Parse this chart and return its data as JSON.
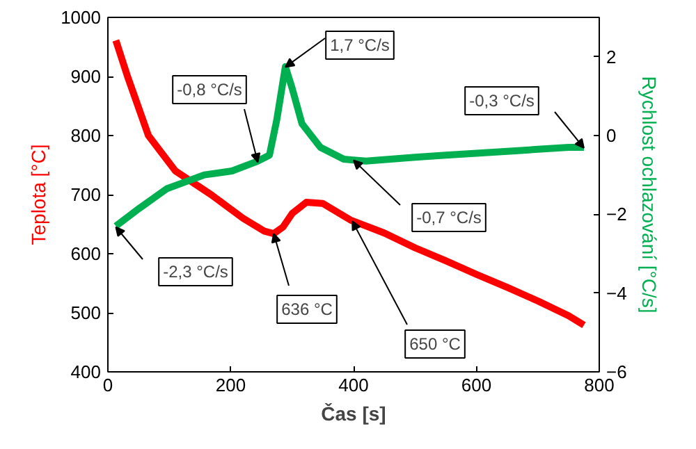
{
  "chart_data": {
    "type": "line",
    "xlabel": "Čas [s]",
    "ylabel": "Teplota [°C]",
    "y2label": "Rychlost ochlazování [°C/s]",
    "xlim": [
      0,
      800
    ],
    "xticks": [
      0,
      200,
      400,
      600,
      800
    ],
    "ylim": [
      400,
      1000
    ],
    "yticks": [
      400,
      500,
      600,
      700,
      800,
      900,
      1000
    ],
    "y2lim": [
      -6,
      3
    ],
    "y2ticks": [
      -6,
      -4,
      -2,
      0,
      2
    ],
    "grid": false,
    "marker": "none",
    "line_style": "solid",
    "series": [
      {
        "color": "#ff0000",
        "x": [
          13,
          32,
          66,
          110,
          168,
          220,
          255,
          270,
          285,
          300,
          323,
          350,
          395,
          450,
          500,
          550,
          600,
          650,
          700,
          750,
          775
        ],
        "values": [
          961,
          900,
          800,
          740,
          700,
          660,
          638,
          634,
          645,
          668,
          687,
          685,
          657,
          635,
          610,
          588,
          565,
          543,
          520,
          495,
          479
        ]
      },
      {
        "color": "#00b050",
        "axis": "y2",
        "x": [
          13,
          51,
          96,
          157,
          202,
          244,
          263,
          275,
          289,
          300,
          316,
          346,
          384,
          420,
          460,
          500,
          550,
          600,
          650,
          700,
          750,
          775
        ],
        "values": [
          -2.3,
          -1.85,
          -1.35,
          -1.0,
          -0.9,
          -0.65,
          -0.5,
          0.4,
          1.75,
          1.2,
          0.3,
          -0.3,
          -0.6,
          -0.65,
          -0.6,
          -0.55,
          -0.5,
          -0.45,
          -0.4,
          -0.35,
          -0.3,
          -0.3
        ]
      }
    ],
    "annotations": [
      {
        "text": "-0,8 °C/s",
        "x": 244,
        "y": 755
      },
      {
        "text": "1,7 °C/s",
        "x": 289,
        "y": 916
      },
      {
        "text": "-0,3 °C/s",
        "x": 775,
        "y": 779
      },
      {
        "text": "-0,7 °C/s",
        "x": 400,
        "y": 758
      },
      {
        "text": "-2,3 °C/s",
        "x": 13,
        "y": 645
      },
      {
        "text": "636 °C",
        "x": 270,
        "y": 634
      },
      {
        "text": "650 °C",
        "x": 398,
        "y": 655
      }
    ]
  }
}
